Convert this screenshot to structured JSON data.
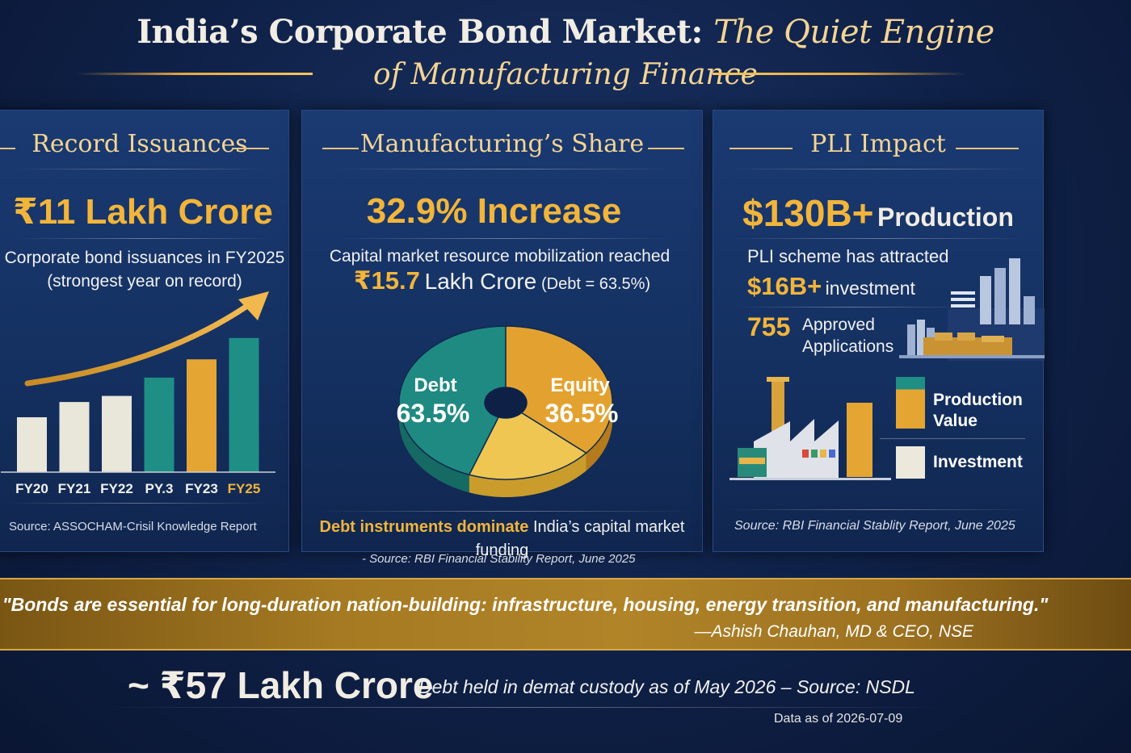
{
  "header": {
    "title_main": "India’s Corporate Bond Market:",
    "title_italic": "The Quiet Engine",
    "title_line2": "of Manufacturing Finance"
  },
  "panel1": {
    "heading": "Record Issuances",
    "stat": "₹11 Lakh Crore",
    "desc_line1": "Corporate bond issuances in FY2025",
    "desc_line2": "(strongest year on record)",
    "source": "Source: ASSOCHAM-Crisil Knowledge Report"
  },
  "panel2": {
    "heading": "Manufacturing’s Share",
    "stat": "32.9% Increase",
    "desc_line1": "Capital market resource mobilization reached",
    "amount": "₹15.7",
    "amount_unit": "Lakh Crore",
    "amount_note": "(Debt = 63.5%)",
    "footnote_bold": "Debt instruments dominate",
    "footnote_rest": "India’s capital market funding",
    "source": "- Source: RBI Financial Stability Report, June 2025"
  },
  "panel3": {
    "heading": "PLI Impact",
    "stat_value": "$130B+",
    "stat_label": "Production",
    "desc_line1": "PLI scheme has attracted",
    "invest_value": "$16B+",
    "invest_label": "investment",
    "apps_count": "755",
    "apps_label_line1": "Approved",
    "apps_label_line2": "Applications",
    "legend": [
      {
        "label_line1": "Production",
        "label_line2": "Value",
        "color": "#e4a532"
      },
      {
        "label_line1": "Investment",
        "label_line2": "",
        "color": "#ece9dc"
      }
    ],
    "source": "Source: RBI Financial Stablity Report, June 2025"
  },
  "quote": {
    "text": "\"Bonds are essential for long-duration nation-building: infrastructure, housing, energy transition, and manufacturing.\"",
    "author": "—Ashish Chauhan, MD & CEO, NSE"
  },
  "footer": {
    "big": "~ ₹57 Lakh Crore",
    "desc": "Debt held in demat custody as of May 2026 – Source: NSDL",
    "data_as_of": "Data as of 2026-07-09"
  },
  "chart_data": [
    {
      "type": "bar",
      "categories": [
        "FY20",
        "FY21",
        "FY22",
        "PY.3",
        "FY23",
        "FY25"
      ],
      "values": [
        3.6,
        4.6,
        5.0,
        6.2,
        7.4,
        8.8
      ],
      "colors": [
        "#e9e6da",
        "#e9e6da",
        "#e9e6da",
        "#1f8f86",
        "#e4a532",
        "#1f8f86"
      ],
      "trend": "up"
    },
    {
      "type": "pie",
      "labels": [
        "Debt",
        "Equity",
        ""
      ],
      "values": [
        63.5,
        36.5,
        0
      ],
      "display": [
        "63.5%",
        "36.5%",
        ""
      ],
      "colors": [
        "#1f8a82",
        "#e3a230",
        "#f0c653"
      ]
    }
  ]
}
